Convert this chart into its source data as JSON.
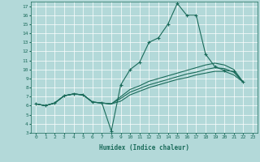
{
  "background_color": "#b3d9d9",
  "grid_color": "#d0e8e8",
  "line_color": "#1a6b5a",
  "xlabel": "Humidex (Indice chaleur)",
  "xlim": [
    -0.5,
    23.5
  ],
  "ylim": [
    3,
    17.5
  ],
  "xticks": [
    0,
    1,
    2,
    3,
    4,
    5,
    6,
    7,
    8,
    9,
    10,
    11,
    12,
    13,
    14,
    15,
    16,
    17,
    18,
    19,
    20,
    21,
    22,
    23
  ],
  "yticks": [
    3,
    4,
    5,
    6,
    7,
    8,
    9,
    10,
    11,
    12,
    13,
    14,
    15,
    16,
    17
  ],
  "series": [
    [
      6.2,
      6.0,
      6.3,
      7.1,
      7.3,
      7.2,
      6.4,
      6.3,
      3.2,
      8.3,
      10.0,
      10.8,
      13.0,
      13.5,
      15.0,
      17.3,
      16.0,
      16.0,
      11.7,
      10.3,
      9.9,
      9.8,
      8.6
    ],
    [
      6.2,
      6.0,
      6.3,
      7.1,
      7.3,
      7.2,
      6.4,
      6.3,
      6.2,
      7.0,
      7.8,
      8.2,
      8.7,
      9.0,
      9.3,
      9.6,
      9.9,
      10.2,
      10.5,
      10.7,
      10.5,
      10.0,
      8.6
    ],
    [
      6.2,
      6.0,
      6.3,
      7.1,
      7.3,
      7.2,
      6.4,
      6.3,
      6.2,
      6.8,
      7.5,
      7.9,
      8.3,
      8.6,
      8.9,
      9.2,
      9.5,
      9.7,
      10.0,
      10.2,
      10.1,
      9.7,
      8.6
    ],
    [
      6.2,
      6.0,
      6.3,
      7.1,
      7.3,
      7.2,
      6.4,
      6.3,
      6.2,
      6.5,
      7.2,
      7.6,
      8.0,
      8.3,
      8.6,
      8.9,
      9.1,
      9.4,
      9.6,
      9.8,
      9.8,
      9.4,
      8.6
    ]
  ],
  "x_values": [
    0,
    1,
    2,
    3,
    4,
    5,
    6,
    7,
    8,
    9,
    10,
    11,
    12,
    13,
    14,
    15,
    16,
    17,
    18,
    19,
    20,
    21,
    22
  ]
}
